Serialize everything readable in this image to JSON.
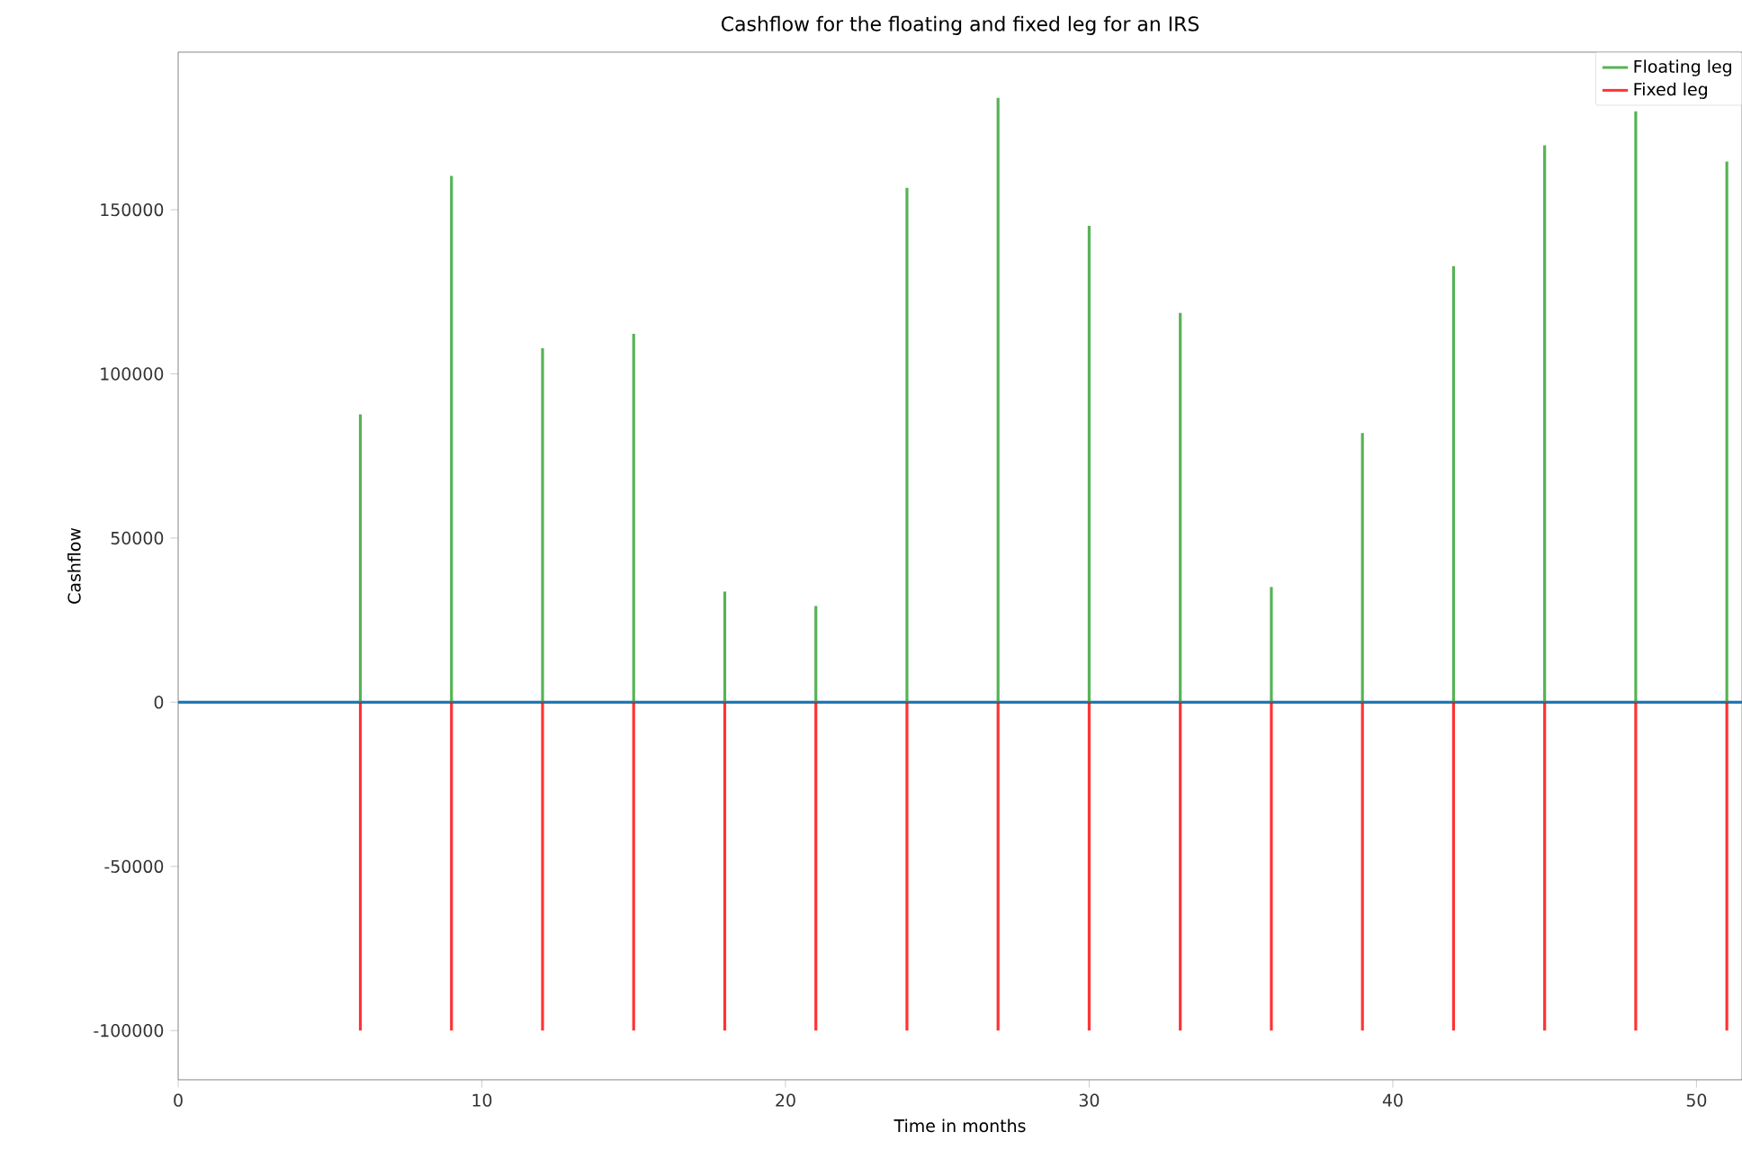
{
  "chart_data": {
    "type": "bar",
    "title": "Cashflow for the floating and fixed leg for an IRS",
    "xlabel": "Time in months",
    "ylabel": "Cashflow",
    "x": [
      6,
      9,
      12,
      15,
      18,
      21,
      24,
      27,
      30,
      33,
      36,
      39,
      42,
      45,
      48,
      51
    ],
    "series": [
      {
        "name": "Floating leg",
        "color": "#2ca02c",
        "values": [
          87700,
          160300,
          107800,
          112200,
          33700,
          29300,
          156700,
          184100,
          145100,
          118600,
          35100,
          82000,
          132800,
          169600,
          180000,
          164700
        ]
      },
      {
        "name": "Fixed leg",
        "color": "#ff0000",
        "values": [
          -100000,
          -100000,
          -100000,
          -100000,
          -100000,
          -100000,
          -100000,
          -100000,
          -100000,
          -100000,
          -100000,
          -100000,
          -100000,
          -100000,
          -100000,
          -100000
        ]
      }
    ],
    "xlim": [
      0,
      51.5
    ],
    "ylim": [
      -115000,
      198000
    ],
    "xticks": [
      0,
      10,
      20,
      30,
      40,
      50
    ],
    "yticks": [
      -100000,
      -50000,
      0,
      50000,
      100000,
      150000
    ],
    "ref_lines": [
      {
        "axis": "y",
        "value": 0,
        "color": "#1f77b4"
      }
    ],
    "legend": "top right",
    "grid": false
  }
}
